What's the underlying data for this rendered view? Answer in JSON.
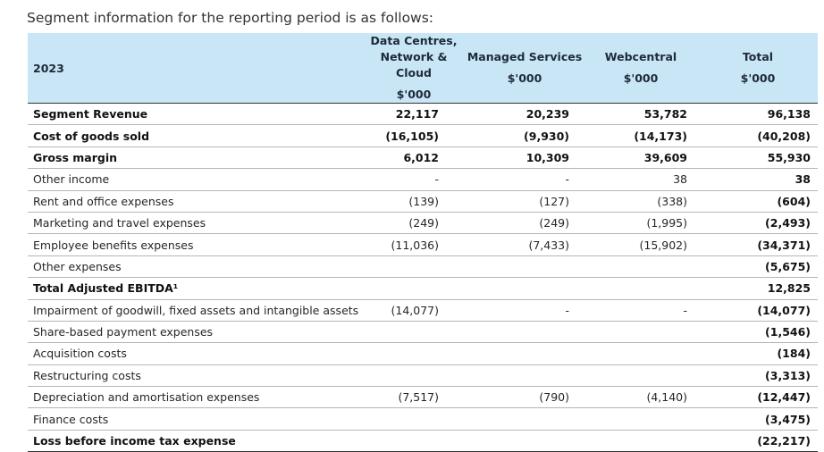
{
  "intro": "Segment information for the reporting period is as follows:",
  "header": {
    "year": "2023",
    "col1_line1": "Data Centres,",
    "col1_line2": "Network & Cloud",
    "col1_unit": "$'000",
    "col2": "Managed Services",
    "col2_unit": "$'000",
    "col3": "Webcentral",
    "col3_unit": "$'000",
    "col4": "Total",
    "col4_unit": "$'000"
  },
  "rows": [
    {
      "label": "Segment Revenue",
      "dc": "22,117",
      "ms": "20,239",
      "wc": "53,782",
      "total": "96,138",
      "bold": true
    },
    {
      "label": "Cost of goods sold",
      "dc": "(16,105)",
      "ms": "(9,930)",
      "wc": "(14,173)",
      "total": "(40,208)",
      "bold": true
    },
    {
      "label": "Gross margin",
      "dc": "6,012",
      "ms": "10,309",
      "wc": "39,609",
      "total": "55,930",
      "bold": true
    },
    {
      "label": "Other income",
      "dc": "-",
      "ms": "-",
      "wc": "38",
      "total": "38",
      "bold": false
    },
    {
      "label": "Rent and office expenses",
      "dc": "(139)",
      "ms": "(127)",
      "wc": "(338)",
      "total": "(604)",
      "bold": false
    },
    {
      "label": "Marketing and travel expenses",
      "dc": "(249)",
      "ms": "(249)",
      "wc": "(1,995)",
      "total": "(2,493)",
      "bold": false
    },
    {
      "label": "Employee benefits expenses",
      "dc": "(11,036)",
      "ms": "(7,433)",
      "wc": "(15,902)",
      "total": "(34,371)",
      "bold": false
    },
    {
      "label": "Other expenses",
      "dc": "",
      "ms": "",
      "wc": "",
      "total": "(5,675)",
      "bold": false
    },
    {
      "label": "Total Adjusted EBITDA¹",
      "dc": "",
      "ms": "",
      "wc": "",
      "total": "12,825",
      "bold": true
    },
    {
      "label": "Impairment of goodwill, fixed assets and intangible assets",
      "dc": "(14,077)",
      "ms": "-",
      "wc": "-",
      "total": "(14,077)",
      "bold": false
    },
    {
      "label": "Share-based payment expenses",
      "dc": "",
      "ms": "",
      "wc": "",
      "total": "(1,546)",
      "bold": false
    },
    {
      "label": "Acquisition costs",
      "dc": "",
      "ms": "",
      "wc": "",
      "total": "(184)",
      "bold": false
    },
    {
      "label": "Restructuring costs",
      "dc": "",
      "ms": "",
      "wc": "",
      "total": "(3,313)",
      "bold": false
    },
    {
      "label": "Depreciation and amortisation expenses",
      "dc": "(7,517)",
      "ms": "(790)",
      "wc": "(4,140)",
      "total": "(12,447)",
      "bold": false
    },
    {
      "label": "Finance costs",
      "dc": "",
      "ms": "",
      "wc": "",
      "total": "(3,475)",
      "bold": false
    },
    {
      "label": "Loss before income tax expense",
      "dc": "",
      "ms": "",
      "wc": "",
      "total": "(22,217)",
      "bold": true
    }
  ]
}
